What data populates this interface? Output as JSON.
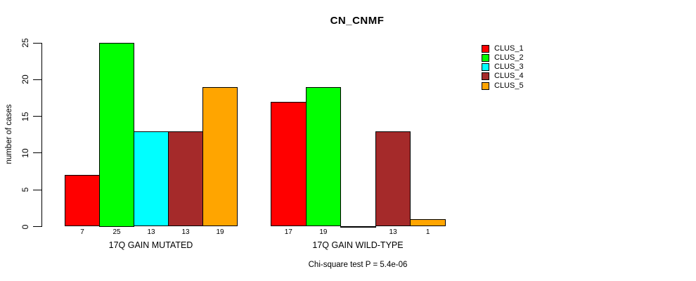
{
  "title": "CN_CNMF",
  "subtitle": "Chi-square test P = 5.4e-06",
  "y_axis": {
    "label": "number of cases",
    "ticks": [
      0,
      5,
      10,
      15,
      20,
      25
    ]
  },
  "legend": {
    "entries": [
      {
        "label": "CLUS_1",
        "color": "#FF0000"
      },
      {
        "label": "CLUS_2",
        "color": "#00FF00"
      },
      {
        "label": "CLUS_3",
        "color": "#00FFFF"
      },
      {
        "label": "CLUS_4",
        "color": "#A52A2A"
      },
      {
        "label": "CLUS_5",
        "color": "#FFA500"
      }
    ]
  },
  "chart_data": {
    "type": "bar",
    "grouped": true,
    "title": "CN_CNMF",
    "xlabel": "",
    "ylabel": "number of cases",
    "ylim": [
      0,
      25
    ],
    "grid": false,
    "legend_position": "right",
    "categories": [
      "17Q GAIN MUTATED",
      "17Q GAIN WILD-TYPE"
    ],
    "series": [
      {
        "name": "CLUS_1",
        "color": "#FF0000",
        "values": [
          7,
          17
        ]
      },
      {
        "name": "CLUS_2",
        "color": "#00FF00",
        "values": [
          25,
          19
        ]
      },
      {
        "name": "CLUS_3",
        "color": "#00FFFF",
        "values": [
          13,
          0
        ]
      },
      {
        "name": "CLUS_4",
        "color": "#A52A2A",
        "values": [
          13,
          13
        ]
      },
      {
        "name": "CLUS_5",
        "color": "#FFA500",
        "values": [
          19,
          1
        ]
      }
    ],
    "bar_labels": [
      [
        "7",
        "25",
        "13",
        "13",
        "19"
      ],
      [
        "17",
        "19",
        "",
        "13",
        "1"
      ]
    ],
    "annotation": "Chi-square test P = 5.4e-06"
  }
}
